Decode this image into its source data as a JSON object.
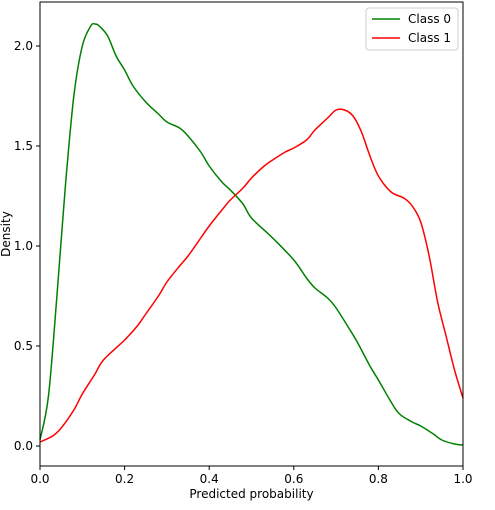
{
  "chart_data": {
    "type": "line",
    "title": "",
    "xlabel": "Predicted probability",
    "ylabel": "Density",
    "xlim": [
      0.0,
      1.0
    ],
    "ylim": [
      -0.1,
      2.22
    ],
    "xticks": [
      0.0,
      0.2,
      0.4,
      0.6,
      0.8,
      1.0
    ],
    "xtick_labels": [
      "0.0",
      "0.2",
      "0.4",
      "0.6",
      "0.8",
      "1.0"
    ],
    "yticks": [
      0.0,
      0.5,
      1.0,
      1.5,
      2.0
    ],
    "ytick_labels": [
      "0.0",
      "0.5",
      "1.0",
      "1.5",
      "2.0"
    ],
    "grid": false,
    "legend": "top-right",
    "series": [
      {
        "name": "Class 0",
        "color": "#008000",
        "x": [
          0.0,
          0.02,
          0.04,
          0.06,
          0.08,
          0.1,
          0.12,
          0.13,
          0.14,
          0.16,
          0.18,
          0.2,
          0.22,
          0.25,
          0.28,
          0.3,
          0.33,
          0.35,
          0.38,
          0.4,
          0.43,
          0.45,
          0.48,
          0.5,
          0.55,
          0.6,
          0.63,
          0.65,
          0.68,
          0.7,
          0.73,
          0.75,
          0.78,
          0.8,
          0.83,
          0.85,
          0.88,
          0.9,
          0.93,
          0.95,
          0.98,
          1.0
        ],
        "y": [
          0.03,
          0.25,
          0.75,
          1.3,
          1.75,
          2.0,
          2.1,
          2.11,
          2.1,
          2.05,
          1.95,
          1.88,
          1.8,
          1.72,
          1.66,
          1.62,
          1.59,
          1.55,
          1.47,
          1.4,
          1.32,
          1.28,
          1.21,
          1.14,
          1.04,
          0.93,
          0.84,
          0.79,
          0.74,
          0.69,
          0.59,
          0.52,
          0.4,
          0.33,
          0.22,
          0.16,
          0.12,
          0.1,
          0.06,
          0.03,
          0.01,
          0.005
        ]
      },
      {
        "name": "Class 1",
        "color": "#ff0000",
        "x": [
          0.0,
          0.03,
          0.05,
          0.08,
          0.1,
          0.13,
          0.15,
          0.2,
          0.23,
          0.25,
          0.28,
          0.3,
          0.33,
          0.35,
          0.38,
          0.4,
          0.43,
          0.45,
          0.48,
          0.5,
          0.53,
          0.55,
          0.58,
          0.6,
          0.63,
          0.65,
          0.68,
          0.7,
          0.72,
          0.74,
          0.76,
          0.78,
          0.8,
          0.83,
          0.86,
          0.88,
          0.9,
          0.92,
          0.94,
          0.96,
          0.98,
          1.0
        ],
        "y": [
          0.02,
          0.05,
          0.09,
          0.18,
          0.26,
          0.36,
          0.43,
          0.53,
          0.6,
          0.66,
          0.75,
          0.82,
          0.9,
          0.95,
          1.04,
          1.1,
          1.18,
          1.23,
          1.29,
          1.34,
          1.4,
          1.43,
          1.47,
          1.49,
          1.53,
          1.58,
          1.64,
          1.68,
          1.68,
          1.65,
          1.57,
          1.45,
          1.35,
          1.27,
          1.24,
          1.2,
          1.12,
          0.95,
          0.72,
          0.55,
          0.38,
          0.24
        ]
      }
    ]
  }
}
